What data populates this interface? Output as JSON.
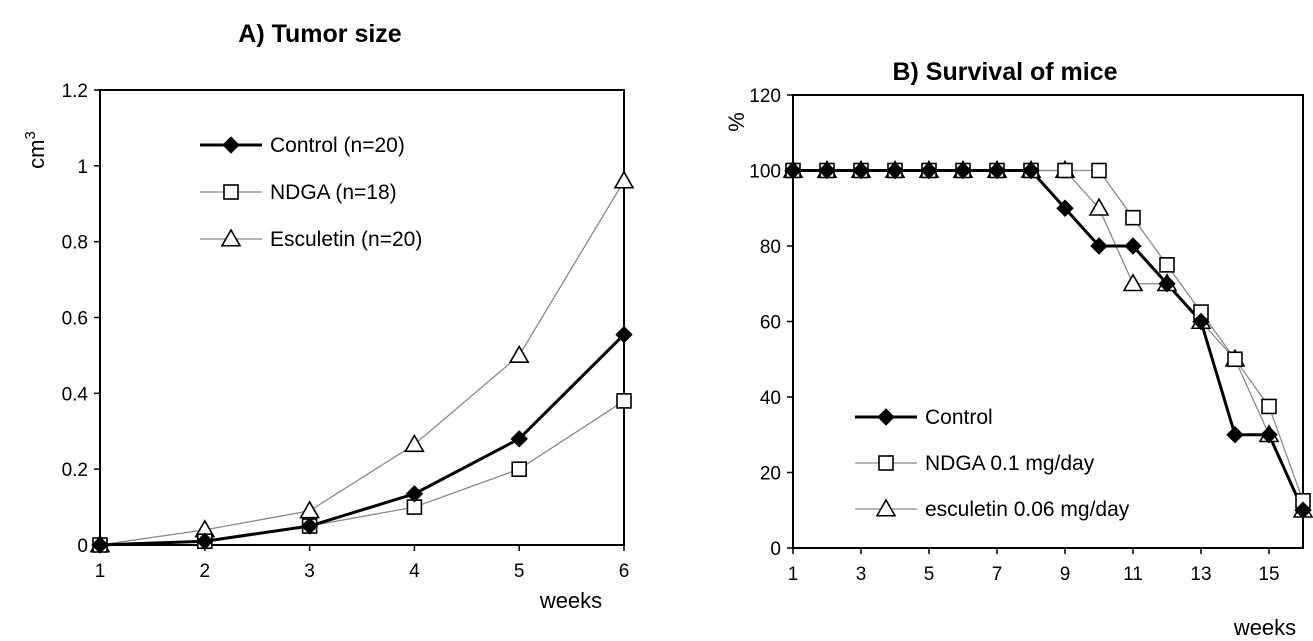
{
  "chart_data": [
    {
      "type": "line",
      "title": "A) Tumor size",
      "xlabel": "weeks",
      "ylabel": "cm",
      "ylabel_superscript": "3",
      "xlim": [
        1,
        6
      ],
      "ylim": [
        0,
        1.2
      ],
      "x_ticks": [
        "1",
        "2",
        "3",
        "4",
        "5",
        "6"
      ],
      "y_ticks": [
        "0",
        "0.2",
        "0.4",
        "0.6",
        "0.8",
        "1",
        "1.2"
      ],
      "grid": false,
      "legend_position": "top-left",
      "series": [
        {
          "name": "Control (n=20)",
          "marker": "filled-diamond",
          "color": "#000000",
          "x": [
            1,
            2,
            3,
            4,
            5,
            6
          ],
          "values": [
            0.0,
            0.01,
            0.05,
            0.135,
            0.28,
            0.555
          ]
        },
        {
          "name": "NDGA (n=18)",
          "marker": "open-square",
          "color": "#777777",
          "x": [
            1,
            2,
            3,
            4,
            5,
            6
          ],
          "values": [
            0.0,
            0.01,
            0.05,
            0.1,
            0.2,
            0.38
          ]
        },
        {
          "name": "Esculetin (n=20)",
          "marker": "open-triangle",
          "color": "#888888",
          "x": [
            1,
            2,
            3,
            4,
            5,
            6
          ],
          "values": [
            0.0,
            0.04,
            0.09,
            0.265,
            0.5,
            0.96
          ]
        }
      ]
    },
    {
      "type": "line",
      "title": "B) Survival of mice",
      "xlabel": "weeks",
      "ylabel": "%",
      "xlim": [
        1,
        16
      ],
      "ylim": [
        0,
        120
      ],
      "x_ticks": [
        "1",
        "3",
        "5",
        "7",
        "9",
        "11",
        "13",
        "15"
      ],
      "x_tick_values": [
        1,
        3,
        5,
        7,
        9,
        11,
        13,
        15
      ],
      "y_ticks": [
        "0",
        "20",
        "40",
        "60",
        "80",
        "100",
        "120"
      ],
      "grid": false,
      "legend_position": "bottom-left",
      "series": [
        {
          "name": "Control",
          "marker": "filled-diamond",
          "color": "#000000",
          "x": [
            1,
            2,
            3,
            4,
            5,
            6,
            7,
            8,
            9,
            10,
            11,
            12,
            13,
            14,
            15,
            16
          ],
          "values": [
            100,
            100,
            100,
            100,
            100,
            100,
            100,
            100,
            90,
            80,
            80,
            70,
            60,
            30,
            30,
            10
          ]
        },
        {
          "name": "NDGA 0.1 mg/day",
          "marker": "open-square",
          "color": "#777777",
          "x": [
            1,
            2,
            3,
            4,
            5,
            6,
            7,
            8,
            9,
            10,
            11,
            12,
            13,
            14,
            15,
            16
          ],
          "values": [
            100,
            100,
            100,
            100,
            100,
            100,
            100,
            100,
            100,
            100,
            87.5,
            75,
            62.5,
            50,
            37.5,
            12.5
          ]
        },
        {
          "name": "esculetin 0.06 mg/day",
          "marker": "open-triangle",
          "color": "#888888",
          "x": [
            1,
            2,
            3,
            4,
            5,
            6,
            7,
            8,
            9,
            10,
            11,
            12,
            13,
            14,
            15,
            16
          ],
          "values": [
            100,
            100,
            100,
            100,
            100,
            100,
            100,
            100,
            100,
            90,
            70,
            70,
            60,
            50,
            30,
            10
          ]
        }
      ]
    }
  ]
}
